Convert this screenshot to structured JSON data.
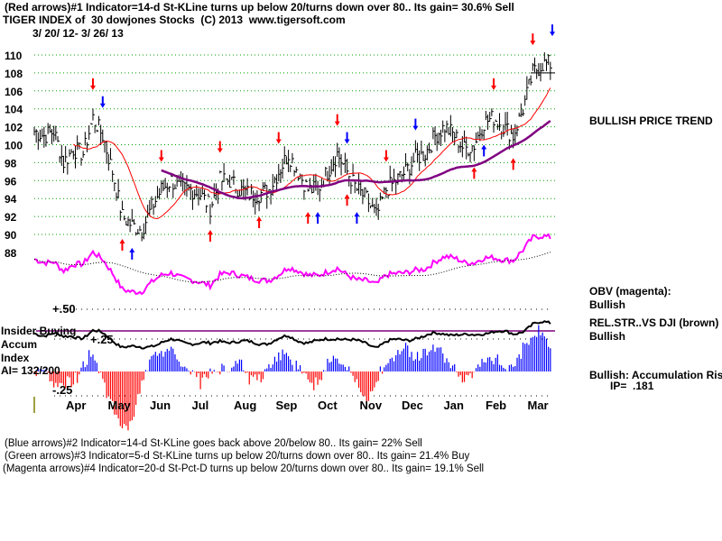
{
  "header": {
    "line1": "(Red arrows)#1 Indicator=14-d St-KLine turns up below 20/turns down over 80.. Its gain= 30.6% Sell",
    "line2": "TIGER INDEX of  30 dowjones Stocks  (C) 2013  www.tigersoft.com",
    "line3": "3/ 20/ 12- 3/ 26/ 13"
  },
  "right_labels": {
    "trend": "BULLISH PRICE TREND",
    "obv": "OBV (magenta):",
    "obv_status": "Bullish",
    "relstr": "REL.STR..VS DJI (brown)",
    "relstr_status": "Bullish",
    "accum": "Bullish: Accumulation Risi",
    "ip": "IP=  .181"
  },
  "left_labels": {
    "insider": "Insider Buying",
    "accum": "Accum",
    "index": "Index",
    "ai": "AI= 132/200"
  },
  "footer": {
    "line1": "(Blue arrows)#2 Indicator=14-d St-KLine goes back above 20/below 80.. Its gain= 22% Sell",
    "line2": "(Green arrows)#3 Indicator=5-d St-KLine turns up below 20/turns down over 80.. Its gain= 21.4% Buy",
    "line3": "(Magenta arrows)#4 Indicator=20-d St-Pct-D turns up below 20/turns down over 80.. Its gain= 19.1% Sell"
  },
  "chart_data": {
    "type": "line",
    "title": "TIGER INDEX of 30 dowjones Stocks",
    "y_ticks": [
      110,
      108,
      106,
      104,
      102,
      100,
      98,
      96,
      94,
      92,
      90,
      88
    ],
    "ylim": [
      88,
      110
    ],
    "x_labels": [
      "Apr",
      "May",
      "Jun",
      "Jul",
      "Aug",
      "Sep",
      "Oct",
      "Nov",
      "Dec",
      "Jan",
      "Feb",
      "Mar"
    ],
    "accum_ticks": [
      "+.50",
      "+.25",
      "-.25"
    ],
    "weekly_close": [
      101.5,
      101,
      101.5,
      98,
      99.5,
      99,
      103,
      101,
      97,
      92,
      91,
      90.5,
      93,
      95,
      96,
      95,
      95,
      94.5,
      93,
      96,
      96,
      95,
      94.5,
      94.5,
      95,
      97,
      99,
      97,
      95,
      95,
      97,
      99,
      97,
      95,
      94,
      92,
      95,
      96,
      97,
      98.5,
      99,
      101,
      102,
      101,
      99.5,
      100,
      102.5,
      103,
      102,
      101,
      104,
      108,
      109,
      109
    ],
    "arrows": [
      {
        "i": 6,
        "dir": "down",
        "color": "#ff0000"
      },
      {
        "i": 7,
        "dir": "down",
        "color": "#0000ff"
      },
      {
        "i": 9,
        "dir": "up",
        "color": "#ff0000"
      },
      {
        "i": 10,
        "dir": "up",
        "color": "#0000ff"
      },
      {
        "i": 13,
        "dir": "down",
        "color": "#ff0000"
      },
      {
        "i": 19,
        "dir": "down",
        "color": "#ff0000"
      },
      {
        "i": 18,
        "dir": "up",
        "color": "#ff0000"
      },
      {
        "i": 23,
        "dir": "up",
        "color": "#ff0000"
      },
      {
        "i": 25,
        "dir": "down",
        "color": "#ff0000"
      },
      {
        "i": 28,
        "dir": "up",
        "color": "#ff0000"
      },
      {
        "i": 29,
        "dir": "up",
        "color": "#0000ff"
      },
      {
        "i": 31,
        "dir": "down",
        "color": "#ff0000"
      },
      {
        "i": 32,
        "dir": "down",
        "color": "#0000ff"
      },
      {
        "i": 32,
        "dir": "up",
        "color": "#ff0000"
      },
      {
        "i": 33,
        "dir": "up",
        "color": "#0000ff"
      },
      {
        "i": 36,
        "dir": "down",
        "color": "#ff0000"
      },
      {
        "i": 39,
        "dir": "down",
        "color": "#0000ff"
      },
      {
        "i": 45,
        "dir": "up",
        "color": "#ff0000"
      },
      {
        "i": 46,
        "dir": "up",
        "color": "#0000ff"
      },
      {
        "i": 47,
        "dir": "down",
        "color": "#ff0000"
      },
      {
        "i": 49,
        "dir": "up",
        "color": "#ff0000"
      },
      {
        "i": 51,
        "dir": "down",
        "color": "#ff0000"
      },
      {
        "i": 53,
        "dir": "down",
        "color": "#0000ff"
      }
    ]
  }
}
